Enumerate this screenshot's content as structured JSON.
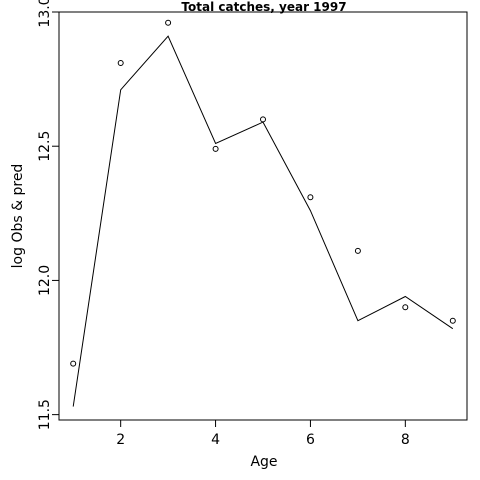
{
  "chart_data": {
    "type": "line",
    "title": "Total catches, year 1997",
    "xlabel": "Age",
    "ylabel": "log Obs & pred",
    "xlim": [
      0.7,
      9.3
    ],
    "ylim": [
      11.48,
      13.0
    ],
    "xticks": [
      2,
      4,
      6,
      8
    ],
    "xtick_labels": [
      "2",
      "4",
      "6",
      "8"
    ],
    "yticks": [
      11.5,
      12.0,
      12.5,
      13.0
    ],
    "ytick_labels": [
      "11.5",
      "12.0",
      "12.5",
      "13.0"
    ],
    "grid": false,
    "series": [
      {
        "style": "points",
        "x": [
          1,
          2,
          3,
          4,
          5,
          6,
          7,
          8,
          9
        ],
        "y": [
          11.69,
          12.81,
          12.96,
          12.49,
          12.6,
          12.31,
          12.11,
          11.9,
          11.85
        ]
      },
      {
        "style": "line",
        "x": [
          1,
          2,
          3,
          4,
          5,
          6,
          7,
          8,
          9
        ],
        "y": [
          11.53,
          12.71,
          12.91,
          12.51,
          12.59,
          12.26,
          11.85,
          11.94,
          11.82
        ]
      }
    ]
  }
}
